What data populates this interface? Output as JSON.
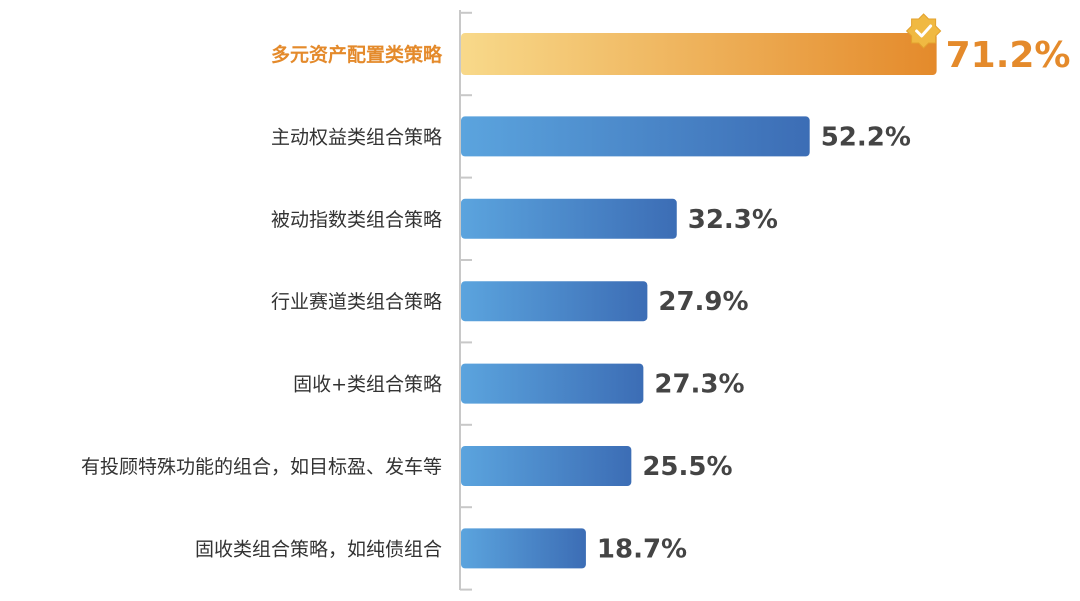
{
  "chart_data": {
    "type": "bar",
    "orientation": "horizontal",
    "categories": [
      "多元资产配置类策略",
      "主动权益类组合策略",
      "被动指数类组合策略",
      "行业赛道类组合策略",
      "固收+类组合策略",
      "有投顾特殊功能的组合，如目标盈、发车等",
      "固收类组合策略，如纯债组合"
    ],
    "values": [
      71.2,
      52.2,
      32.3,
      27.9,
      27.3,
      25.5,
      18.7
    ],
    "value_labels": [
      "71.2%",
      "52.2%",
      "32.3%",
      "27.9%",
      "27.3%",
      "25.5%",
      "18.7%"
    ],
    "unit": "%",
    "xlim": [
      0,
      100
    ],
    "highlight_index": 0,
    "highlight_icon": "badge-check-icon",
    "grid": false,
    "legend": "none",
    "colors": {
      "highlight_start": "#F8D98A",
      "highlight_end": "#E48A2B",
      "bar_start": "#5BA4DE",
      "bar_end": "#3C6DB5",
      "axis": "#C8C8C8",
      "label": "#333333",
      "value": "#444444",
      "highlight_text": "#E48A2B",
      "badge": "#F0B942"
    }
  }
}
